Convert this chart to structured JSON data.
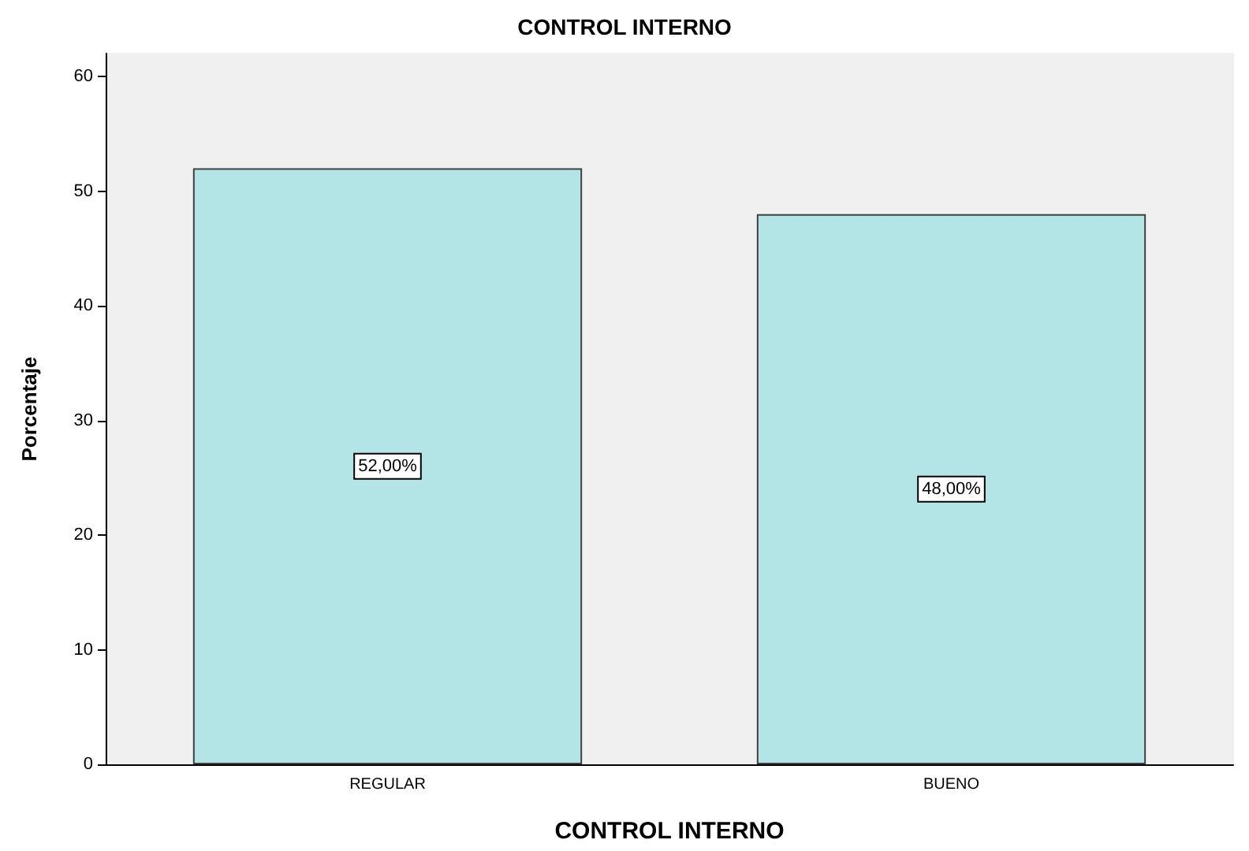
{
  "chart_data": {
    "type": "bar",
    "title": "CONTROL INTERNO",
    "xlabel": "CONTROL INTERNO",
    "ylabel": "Porcentaje",
    "categories": [
      "REGULAR",
      "BUENO"
    ],
    "values": [
      52,
      48
    ],
    "value_labels": [
      "52,00%",
      "48,00%"
    ],
    "color": "#b3e5e6",
    "ylim": [
      0,
      62
    ],
    "yticks": [
      0,
      10,
      20,
      30,
      40,
      50,
      60
    ],
    "grid": false
  }
}
